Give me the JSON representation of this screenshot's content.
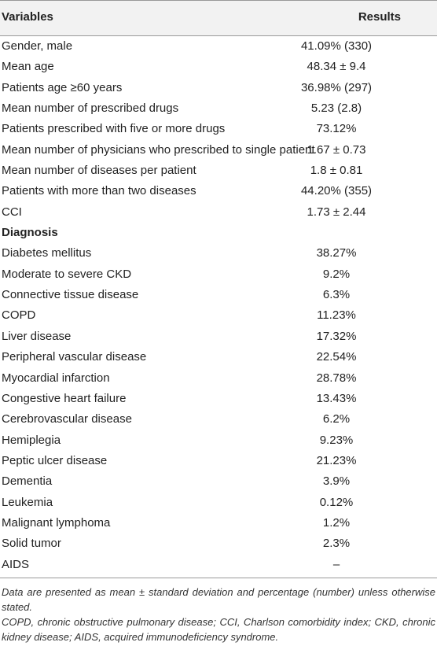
{
  "table": {
    "headers": {
      "variables": "Variables",
      "results": "Results"
    },
    "rows": [
      {
        "variable": "Gender, male",
        "result": "41.09% (330)",
        "section": false
      },
      {
        "variable": "Mean age",
        "result": "48.34 ± 9.4",
        "section": false
      },
      {
        "variable": "Patients age ≥60 years",
        "result": "36.98% (297)",
        "section": false
      },
      {
        "variable": "Mean number of prescribed drugs",
        "result": "5.23 (2.8)",
        "section": false
      },
      {
        "variable": "Patients prescribed with five or more drugs",
        "result": "73.12%",
        "section": false
      },
      {
        "variable": "Mean number of physicians who prescribed to single patient",
        "result": "1.67 ± 0.73",
        "section": false
      },
      {
        "variable": "Mean number of diseases per patient",
        "result": "1.8 ± 0.81",
        "section": false
      },
      {
        "variable": "Patients with more than two diseases",
        "result": "44.20% (355)",
        "section": false
      },
      {
        "variable": "CCI",
        "result": "1.73 ± 2.44",
        "section": false
      },
      {
        "variable": "Diagnosis",
        "result": "",
        "section": true
      },
      {
        "variable": "Diabetes mellitus",
        "result": "38.27%",
        "section": false
      },
      {
        "variable": "Moderate to severe CKD",
        "result": "9.2%",
        "section": false
      },
      {
        "variable": "Connective tissue disease",
        "result": "6.3%",
        "section": false
      },
      {
        "variable": "COPD",
        "result": "11.23%",
        "section": false
      },
      {
        "variable": "Liver disease",
        "result": "17.32%",
        "section": false
      },
      {
        "variable": "Peripheral vascular disease",
        "result": "22.54%",
        "section": false
      },
      {
        "variable": "Myocardial infarction",
        "result": "28.78%",
        "section": false
      },
      {
        "variable": "Congestive heart failure",
        "result": "13.43%",
        "section": false
      },
      {
        "variable": "Cerebrovascular disease",
        "result": "6.2%",
        "section": false
      },
      {
        "variable": "Hemiplegia",
        "result": "9.23%",
        "section": false
      },
      {
        "variable": "Peptic ulcer disease",
        "result": "21.23%",
        "section": false
      },
      {
        "variable": "Dementia",
        "result": "3.9%",
        "section": false
      },
      {
        "variable": "Leukemia",
        "result": "0.12%",
        "section": false
      },
      {
        "variable": "Malignant lymphoma",
        "result": "1.2%",
        "section": false
      },
      {
        "variable": "Solid tumor",
        "result": "2.3%",
        "section": false
      },
      {
        "variable": "AIDS",
        "result": "–",
        "section": false
      }
    ]
  },
  "notes": {
    "line1": "Data are presented as mean ± standard deviation and percentage (number) unless otherwise stated.",
    "line2": "COPD, chronic obstructive pulmonary disease; CCI, Charlson comorbidity index; CKD, chronic kidney disease; AIDS, acquired immunodeficiency syndrome."
  }
}
